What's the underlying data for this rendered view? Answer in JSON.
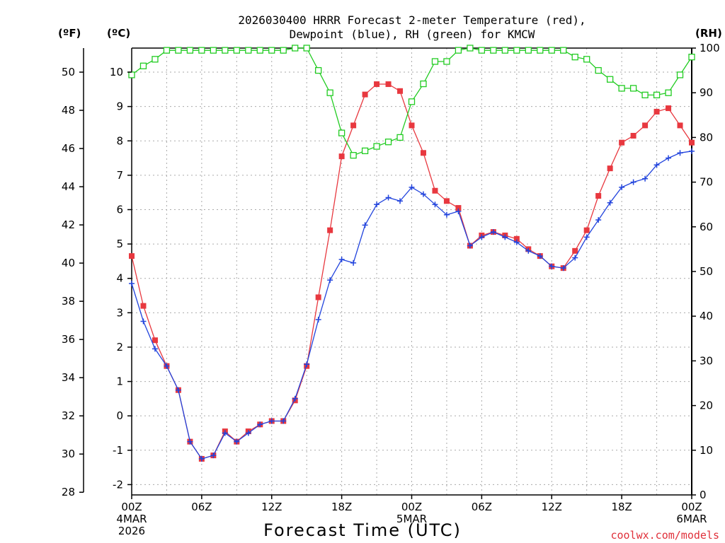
{
  "title_line1": "2026030400 HRRR Forecast 2-meter Temperature (red),",
  "title_line2": "Dewpoint (blue), RH (green) for KMCW",
  "unit_f": "(ºF)",
  "unit_c": "(ºC)",
  "unit_rh": "(RH)",
  "xlabel": "Forecast Time (UTC)",
  "credit": "coolwx.com/models",
  "colors": {
    "temperature": "#e8383f",
    "dewpoint": "#2244dd",
    "rh": "#22cc22",
    "grid": "#aaaaaa"
  },
  "chart_data": {
    "type": "line",
    "x_hours": [
      0,
      1,
      2,
      3,
      4,
      5,
      6,
      7,
      8,
      9,
      10,
      11,
      12,
      13,
      14,
      15,
      16,
      17,
      18,
      19,
      20,
      21,
      22,
      23,
      24,
      25,
      26,
      27,
      28,
      29,
      30,
      31,
      32,
      33,
      34,
      35,
      36,
      37,
      38,
      39,
      40,
      41,
      42,
      43,
      44,
      45,
      46,
      47,
      48
    ],
    "x_ticks": [
      {
        "hour": 0,
        "label": "00Z",
        "sub1": "4MAR",
        "sub2": "2026"
      },
      {
        "hour": 6,
        "label": "06Z",
        "sub1": "",
        "sub2": ""
      },
      {
        "hour": 12,
        "label": "12Z",
        "sub1": "",
        "sub2": ""
      },
      {
        "hour": 18,
        "label": "18Z",
        "sub1": "",
        "sub2": ""
      },
      {
        "hour": 24,
        "label": "00Z",
        "sub1": "5MAR",
        "sub2": ""
      },
      {
        "hour": 30,
        "label": "06Z",
        "sub1": "",
        "sub2": ""
      },
      {
        "hour": 36,
        "label": "12Z",
        "sub1": "",
        "sub2": ""
      },
      {
        "hour": 42,
        "label": "18Z",
        "sub1": "",
        "sub2": ""
      },
      {
        "hour": 48,
        "label": "00Z",
        "sub1": "6MAR",
        "sub2": ""
      }
    ],
    "xlim": [
      0,
      48
    ],
    "ylim_c": [
      -2.3,
      10.7
    ],
    "ylim_rh": [
      0,
      100
    ],
    "y_ticks_c": [
      -2,
      -1,
      0,
      1,
      2,
      3,
      4,
      5,
      6,
      7,
      8,
      9,
      10
    ],
    "y_ticks_f": [
      28,
      30,
      32,
      34,
      36,
      38,
      40,
      42,
      44,
      46,
      48,
      50
    ],
    "y_ticks_rh": [
      0,
      10,
      20,
      30,
      40,
      50,
      60,
      70,
      80,
      90,
      100
    ],
    "series": [
      {
        "key": "temperature",
        "unit": "C",
        "values": [
          4.65,
          3.2,
          2.2,
          1.45,
          0.75,
          -0.75,
          -1.25,
          -1.15,
          -0.45,
          -0.75,
          -0.45,
          -0.25,
          -0.15,
          -0.15,
          0.45,
          1.45,
          3.45,
          5.4,
          7.55,
          8.45,
          9.35,
          9.65,
          9.65,
          9.45,
          8.45,
          7.65,
          6.55,
          6.25,
          6.05,
          4.95,
          5.25,
          5.35,
          5.25,
          5.15,
          4.85,
          4.65,
          4.35,
          4.3,
          4.8,
          5.4,
          6.4,
          7.2,
          7.95,
          8.15,
          8.45,
          8.85,
          8.95,
          8.45,
          7.95
        ]
      },
      {
        "key": "dewpoint",
        "unit": "C",
        "values": [
          3.85,
          2.75,
          1.95,
          1.45,
          0.75,
          -0.75,
          -1.25,
          -1.15,
          -0.5,
          -0.75,
          -0.5,
          -0.25,
          -0.15,
          -0.15,
          0.5,
          1.5,
          2.8,
          3.95,
          4.55,
          4.45,
          5.55,
          6.15,
          6.35,
          6.25,
          6.65,
          6.45,
          6.15,
          5.85,
          5.95,
          4.95,
          5.2,
          5.35,
          5.2,
          5.05,
          4.8,
          4.65,
          4.35,
          4.3,
          4.6,
          5.2,
          5.7,
          6.2,
          6.65,
          6.8,
          6.9,
          7.3,
          7.5,
          7.65,
          7.7
        ]
      },
      {
        "key": "rh",
        "unit": "%",
        "values": [
          94,
          96,
          97.5,
          99.5,
          99.5,
          99.5,
          99.5,
          99.5,
          99.5,
          99.5,
          99.5,
          99.5,
          99.5,
          99.5,
          100,
          100,
          95,
          90,
          81,
          76,
          77,
          78,
          79,
          80,
          88,
          92,
          97,
          97,
          99.5,
          100,
          99.5,
          99.5,
          99.5,
          99.5,
          99.5,
          99.5,
          99.5,
          99.5,
          98,
          97.5,
          95,
          93,
          91,
          91,
          89.5,
          89.5,
          90,
          94,
          98
        ]
      }
    ]
  }
}
